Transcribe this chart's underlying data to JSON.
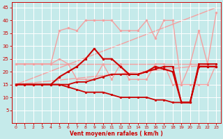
{
  "xlabel": "Vent moyen/en rafales ( km/h )",
  "xlim": [
    -0.5,
    23.5
  ],
  "ylim": [
    0,
    47
  ],
  "yticks": [
    5,
    10,
    15,
    20,
    25,
    30,
    35,
    40,
    45
  ],
  "xticks": [
    0,
    1,
    2,
    3,
    4,
    5,
    6,
    7,
    8,
    9,
    10,
    11,
    12,
    13,
    14,
    15,
    16,
    17,
    18,
    19,
    20,
    21,
    22,
    23
  ],
  "background_color": "#c5eaea",
  "grid_color": "#ffffff",
  "lines": [
    {
      "x": [
        0,
        23
      ],
      "y": [
        15,
        23
      ],
      "color": "#f4a0a0",
      "lw": 1.0,
      "marker": null,
      "zorder": 1
    },
    {
      "x": [
        0,
        23
      ],
      "y": [
        15,
        45
      ],
      "color": "#f4a0a0",
      "lw": 1.0,
      "marker": null,
      "zorder": 1
    },
    {
      "x": [
        0,
        23
      ],
      "y": [
        23,
        23
      ],
      "color": "#f4a0a0",
      "lw": 1.0,
      "marker": null,
      "zorder": 1
    },
    {
      "x": [
        0,
        1,
        2,
        3,
        4,
        5,
        6,
        7,
        8,
        9,
        10,
        11,
        12,
        13,
        14,
        15,
        16,
        17,
        18,
        19,
        20,
        21,
        22,
        23
      ],
      "y": [
        23,
        23,
        23,
        23,
        23,
        36,
        37,
        36,
        40,
        40,
        40,
        40,
        36,
        36,
        36,
        40,
        33,
        40,
        40,
        15,
        23,
        36,
        23,
        43
      ],
      "color": "#f4a0a0",
      "lw": 1.0,
      "marker": "o",
      "ms": 2.0,
      "zorder": 2
    },
    {
      "x": [
        0,
        1,
        2,
        3,
        4,
        5,
        6,
        7,
        8,
        9,
        10,
        11,
        12,
        13,
        14,
        15,
        16,
        17,
        18,
        19,
        20,
        21,
        22,
        23
      ],
      "y": [
        15,
        15,
        15,
        15,
        15,
        15,
        14,
        13,
        12,
        12,
        12,
        11,
        10,
        10,
        10,
        10,
        9,
        9,
        8,
        8,
        8,
        22,
        22,
        22
      ],
      "color": "#cc0000",
      "lw": 1.3,
      "marker": "o",
      "ms": 1.8,
      "zorder": 3
    },
    {
      "x": [
        0,
        1,
        2,
        3,
        4,
        5,
        6,
        7,
        8,
        9,
        10,
        11,
        12,
        13,
        14,
        15,
        16,
        17,
        18,
        19,
        20,
        21,
        22,
        23
      ],
      "y": [
        15,
        15,
        15,
        15,
        15,
        15,
        15,
        16,
        16,
        17,
        18,
        19,
        19,
        19,
        19,
        20,
        21,
        22,
        22,
        8,
        8,
        23,
        23,
        23
      ],
      "color": "#cc0000",
      "lw": 1.3,
      "marker": "o",
      "ms": 1.8,
      "zorder": 3
    },
    {
      "x": [
        0,
        1,
        2,
        3,
        4,
        5,
        6,
        7,
        8,
        9,
        10,
        11,
        12,
        13,
        14,
        15,
        16,
        17,
        18,
        19,
        20,
        21,
        22,
        23
      ],
      "y": [
        15,
        15,
        15,
        15,
        15,
        18,
        20,
        22,
        25,
        29,
        25,
        25,
        22,
        19,
        19,
        20,
        22,
        21,
        20,
        8,
        8,
        22,
        22,
        22
      ],
      "color": "#cc0000",
      "lw": 1.5,
      "marker": "o",
      "ms": 2.0,
      "zorder": 4
    },
    {
      "x": [
        0,
        1,
        2,
        3,
        4,
        5,
        6,
        7,
        8,
        9,
        10,
        11,
        12,
        13,
        14,
        15,
        16,
        17,
        18,
        19,
        20,
        21,
        22,
        23
      ],
      "y": [
        23,
        23,
        23,
        23,
        23,
        25,
        23,
        17,
        17,
        17,
        23,
        17,
        23,
        17,
        17,
        17,
        23,
        23,
        15,
        15,
        15,
        15,
        15,
        23
      ],
      "color": "#f4a0a0",
      "lw": 1.0,
      "marker": "o",
      "ms": 1.8,
      "zorder": 2
    }
  ]
}
